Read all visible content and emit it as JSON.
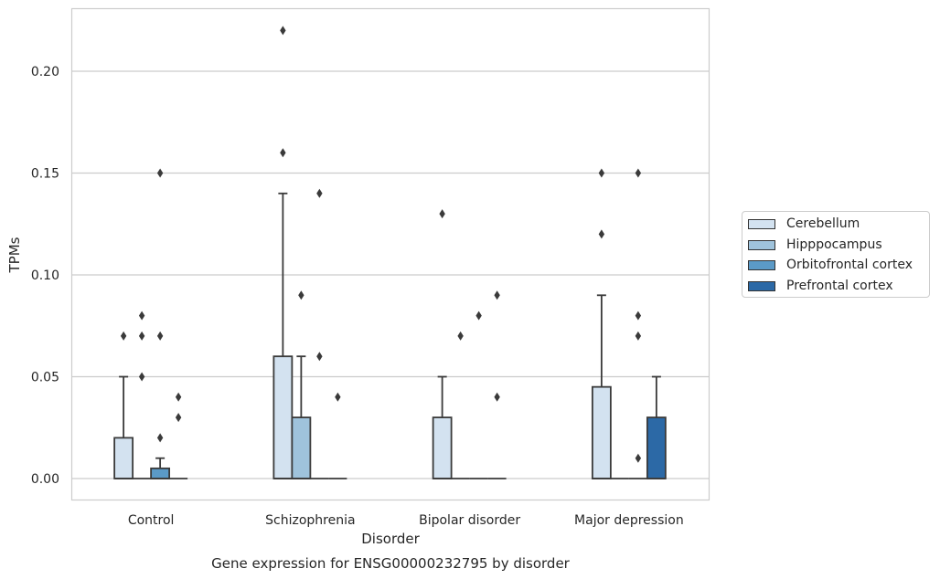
{
  "chart_data": {
    "type": "box",
    "title": "Gene expression for ENSG00000232795 by disorder",
    "xlabel": "Disorder",
    "ylabel": "TPMs",
    "ylim": [
      -0.011,
      0.231
    ],
    "yticks": [
      "0.00",
      "0.05",
      "0.10",
      "0.15",
      "0.20"
    ],
    "grid": true,
    "legend_position": "right",
    "categories": [
      "Control",
      "Schizophrenia",
      "Bipolar disorder",
      "Major depression"
    ],
    "series": [
      {
        "name": "Cerebellum",
        "color": "#d3e2f0",
        "boxes": [
          {
            "q1": 0.0,
            "median": 0.0,
            "q3": 0.02,
            "whisker_low": 0.0,
            "whisker_high": 0.05,
            "outliers": [
              0.07
            ]
          },
          {
            "q1": 0.0,
            "median": 0.0,
            "q3": 0.06,
            "whisker_low": 0.0,
            "whisker_high": 0.14,
            "outliers": [
              0.16,
              0.22
            ]
          },
          {
            "q1": 0.0,
            "median": 0.0,
            "q3": 0.03,
            "whisker_low": 0.0,
            "whisker_high": 0.05,
            "outliers": [
              0.13
            ]
          },
          {
            "q1": 0.0,
            "median": 0.0,
            "q3": 0.045,
            "whisker_low": 0.0,
            "whisker_high": 0.09,
            "outliers": [
              0.12,
              0.15
            ]
          }
        ]
      },
      {
        "name": "Hipppocampus",
        "color": "#9fc3dc",
        "boxes": [
          {
            "q1": 0.0,
            "median": 0.0,
            "q3": 0.0,
            "whisker_low": 0.0,
            "whisker_high": 0.0,
            "outliers": [
              0.05,
              0.07,
              0.08
            ]
          },
          {
            "q1": 0.0,
            "median": 0.0,
            "q3": 0.03,
            "whisker_low": 0.0,
            "whisker_high": 0.06,
            "outliers": [
              0.09
            ]
          },
          {
            "q1": 0.0,
            "median": 0.0,
            "q3": 0.0,
            "whisker_low": 0.0,
            "whisker_high": 0.0,
            "outliers": [
              0.07
            ]
          },
          {
            "q1": 0.0,
            "median": 0.0,
            "q3": 0.0,
            "whisker_low": 0.0,
            "whisker_high": 0.0,
            "outliers": []
          }
        ]
      },
      {
        "name": "Orbitofrontal cortex",
        "color": "#5b9ac7",
        "boxes": [
          {
            "q1": 0.0,
            "median": 0.0,
            "q3": 0.005,
            "whisker_low": 0.0,
            "whisker_high": 0.01,
            "outliers": [
              0.02,
              0.07,
              0.15
            ]
          },
          {
            "q1": 0.0,
            "median": 0.0,
            "q3": 0.0,
            "whisker_low": 0.0,
            "whisker_high": 0.0,
            "outliers": [
              0.06,
              0.14
            ]
          },
          {
            "q1": 0.0,
            "median": 0.0,
            "q3": 0.0,
            "whisker_low": 0.0,
            "whisker_high": 0.0,
            "outliers": [
              0.08
            ]
          },
          {
            "q1": 0.0,
            "median": 0.0,
            "q3": 0.0,
            "whisker_low": 0.0,
            "whisker_high": 0.0,
            "outliers": [
              0.01,
              0.07,
              0.08,
              0.15
            ]
          }
        ]
      },
      {
        "name": "Prefrontal cortex",
        "color": "#2c69a6",
        "boxes": [
          {
            "q1": 0.0,
            "median": 0.0,
            "q3": 0.0,
            "whisker_low": 0.0,
            "whisker_high": 0.0,
            "outliers": [
              0.03,
              0.04
            ]
          },
          {
            "q1": 0.0,
            "median": 0.0,
            "q3": 0.0,
            "whisker_low": 0.0,
            "whisker_high": 0.0,
            "outliers": [
              0.04
            ]
          },
          {
            "q1": 0.0,
            "median": 0.0,
            "q3": 0.0,
            "whisker_low": 0.0,
            "whisker_high": 0.0,
            "outliers": [
              0.04,
              0.09
            ]
          },
          {
            "q1": 0.0,
            "median": 0.0,
            "q3": 0.03,
            "whisker_low": 0.0,
            "whisker_high": 0.05,
            "outliers": []
          }
        ]
      }
    ]
  }
}
